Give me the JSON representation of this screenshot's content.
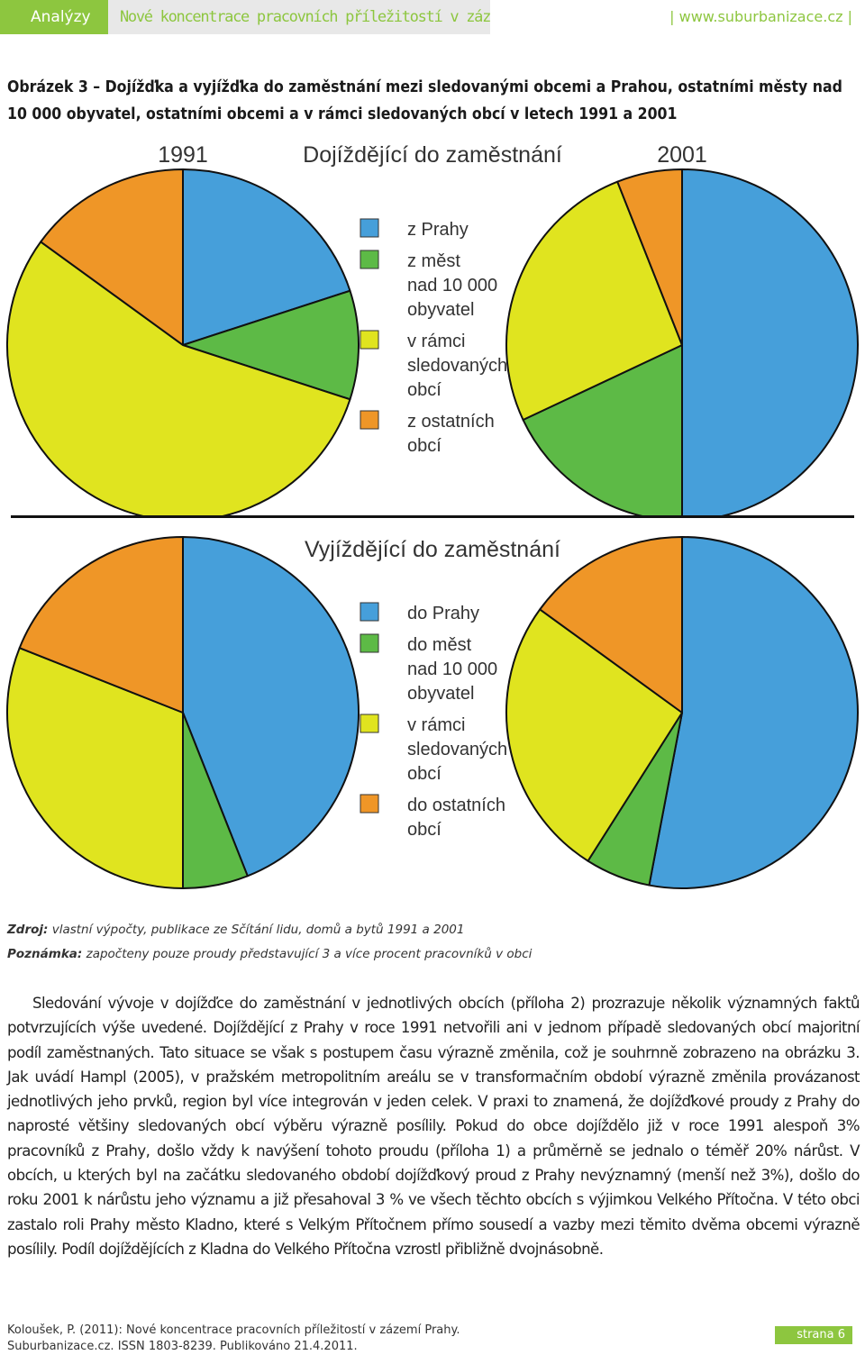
{
  "header": {
    "section": "Analýzy",
    "title": "Nové koncentrace pracovních příležitostí v zázemí Prahy.",
    "site": "| www.suburbanizace.cz |"
  },
  "figure_title": "Obrázek 3 – Dojížďka a vyjížďka do zaměstnání mezi sledovanými obcemi a Prahou, ostatními městy nad 10 000 obyvatel, ostatními obcemi a v rámci sledovaných obcí v letech 1991 a 2001",
  "colors": {
    "blue": "#469fda",
    "green": "#5dba46",
    "yellow": "#e0e41f",
    "orange": "#ef9627"
  },
  "chart_data": [
    {
      "type": "pie",
      "title": "Dojíždějící do zaměstnání",
      "year_left": "1991",
      "year_right": "2001",
      "legend": [
        "z Prahy",
        "z měst nad 10 000 obyvatel",
        "v rámci sledovaných obcí",
        "z ostatních obcí"
      ],
      "legend_lines": [
        [
          "z Prahy"
        ],
        [
          "z měst",
          "nad 10 000",
          "obyvatel"
        ],
        [
          "v rámci",
          "sledovaných",
          "obcí"
        ],
        [
          "z ostatních",
          "obcí"
        ]
      ],
      "pies": [
        {
          "year": "1991",
          "values": [
            20,
            10,
            55,
            15
          ]
        },
        {
          "year": "2001",
          "values": [
            50,
            18,
            26,
            6
          ]
        }
      ]
    },
    {
      "type": "pie",
      "title": "Vyjíždějící do zaměstnání",
      "year_left": "1991",
      "year_right": "2001",
      "legend": [
        "do Prahy",
        "do měst nad 10 000 obyvatel",
        "v rámci sledovaných obcí",
        "do ostatních obcí"
      ],
      "legend_lines": [
        [
          "do Prahy"
        ],
        [
          "do měst",
          "nad 10 000",
          "obyvatel"
        ],
        [
          "v rámci",
          "sledovaných",
          "obcí"
        ],
        [
          "do ostatních",
          "obcí"
        ]
      ],
      "pies": [
        {
          "year": "1991",
          "values": [
            44,
            6,
            31,
            19
          ]
        },
        {
          "year": "2001",
          "values": [
            53,
            6,
            26,
            15
          ]
        }
      ]
    }
  ],
  "source": {
    "label": "Zdroj:",
    "text": "vlastní výpočty, publikace ze Sčítání lidu, domů a bytů 1991 a 2001"
  },
  "note": {
    "label": "Poznámka:",
    "text": "započteny pouze proudy představující 3 a více procent pracovníků v obci"
  },
  "body": "Sledování vývoje v dojížďce do zaměstnání v jednotlivých obcích (příloha 2) prozrazuje několik významných faktů potvrzujících výše uvedené. Dojíždějící z Prahy v roce 1991 netvořili ani v jednom případě sledovaných obcí majoritní podíl zaměstnaných. Tato situace se však s postupem času výrazně změnila, což je souhrnně zobrazeno na obrázku 3. Jak uvádí Hampl (2005), v pražském metropolitním areálu se v transformačním období výrazně změnila provázanost jednotlivých jeho prvků, region byl více integrován v jeden celek. V praxi to znamená, že dojížďkové proudy z Prahy do naprosté většiny sledovaných obcí výběru výrazně posílily. Pokud do obce dojíždělo již v roce 1991 alespoň 3% pracovníků z Prahy, došlo vždy k navýšení tohoto proudu (příloha 1) a průměrně se jednalo o téměř 20% nárůst. V obcích, u kterých byl na začátku sledovaného období dojížďkový proud z Prahy nevýznamný (menší než 3%), došlo do roku 2001 k nárůstu jeho významu a již přesahoval 3 % ve všech těchto obcích s výjimkou Velkého Přítočna. V této obci zastalo roli Prahy město Kladno, které s Velkým Přítočnem přímo sousedí a vazby mezi těmito dvěma obcemi výrazně posílily. Podíl dojíždějících z Kladna do Velkého Přítočna vzrostl přibližně dvojnásobně.",
  "footer": {
    "line1": "Koloušek, P. (2011): Nové koncentrace pracovních příležitostí v zázemí Prahy.",
    "line2": "Suburbanizace.cz. ISSN 1803-8239. Publikováno 21.4.2011.",
    "page": "strana 6"
  }
}
